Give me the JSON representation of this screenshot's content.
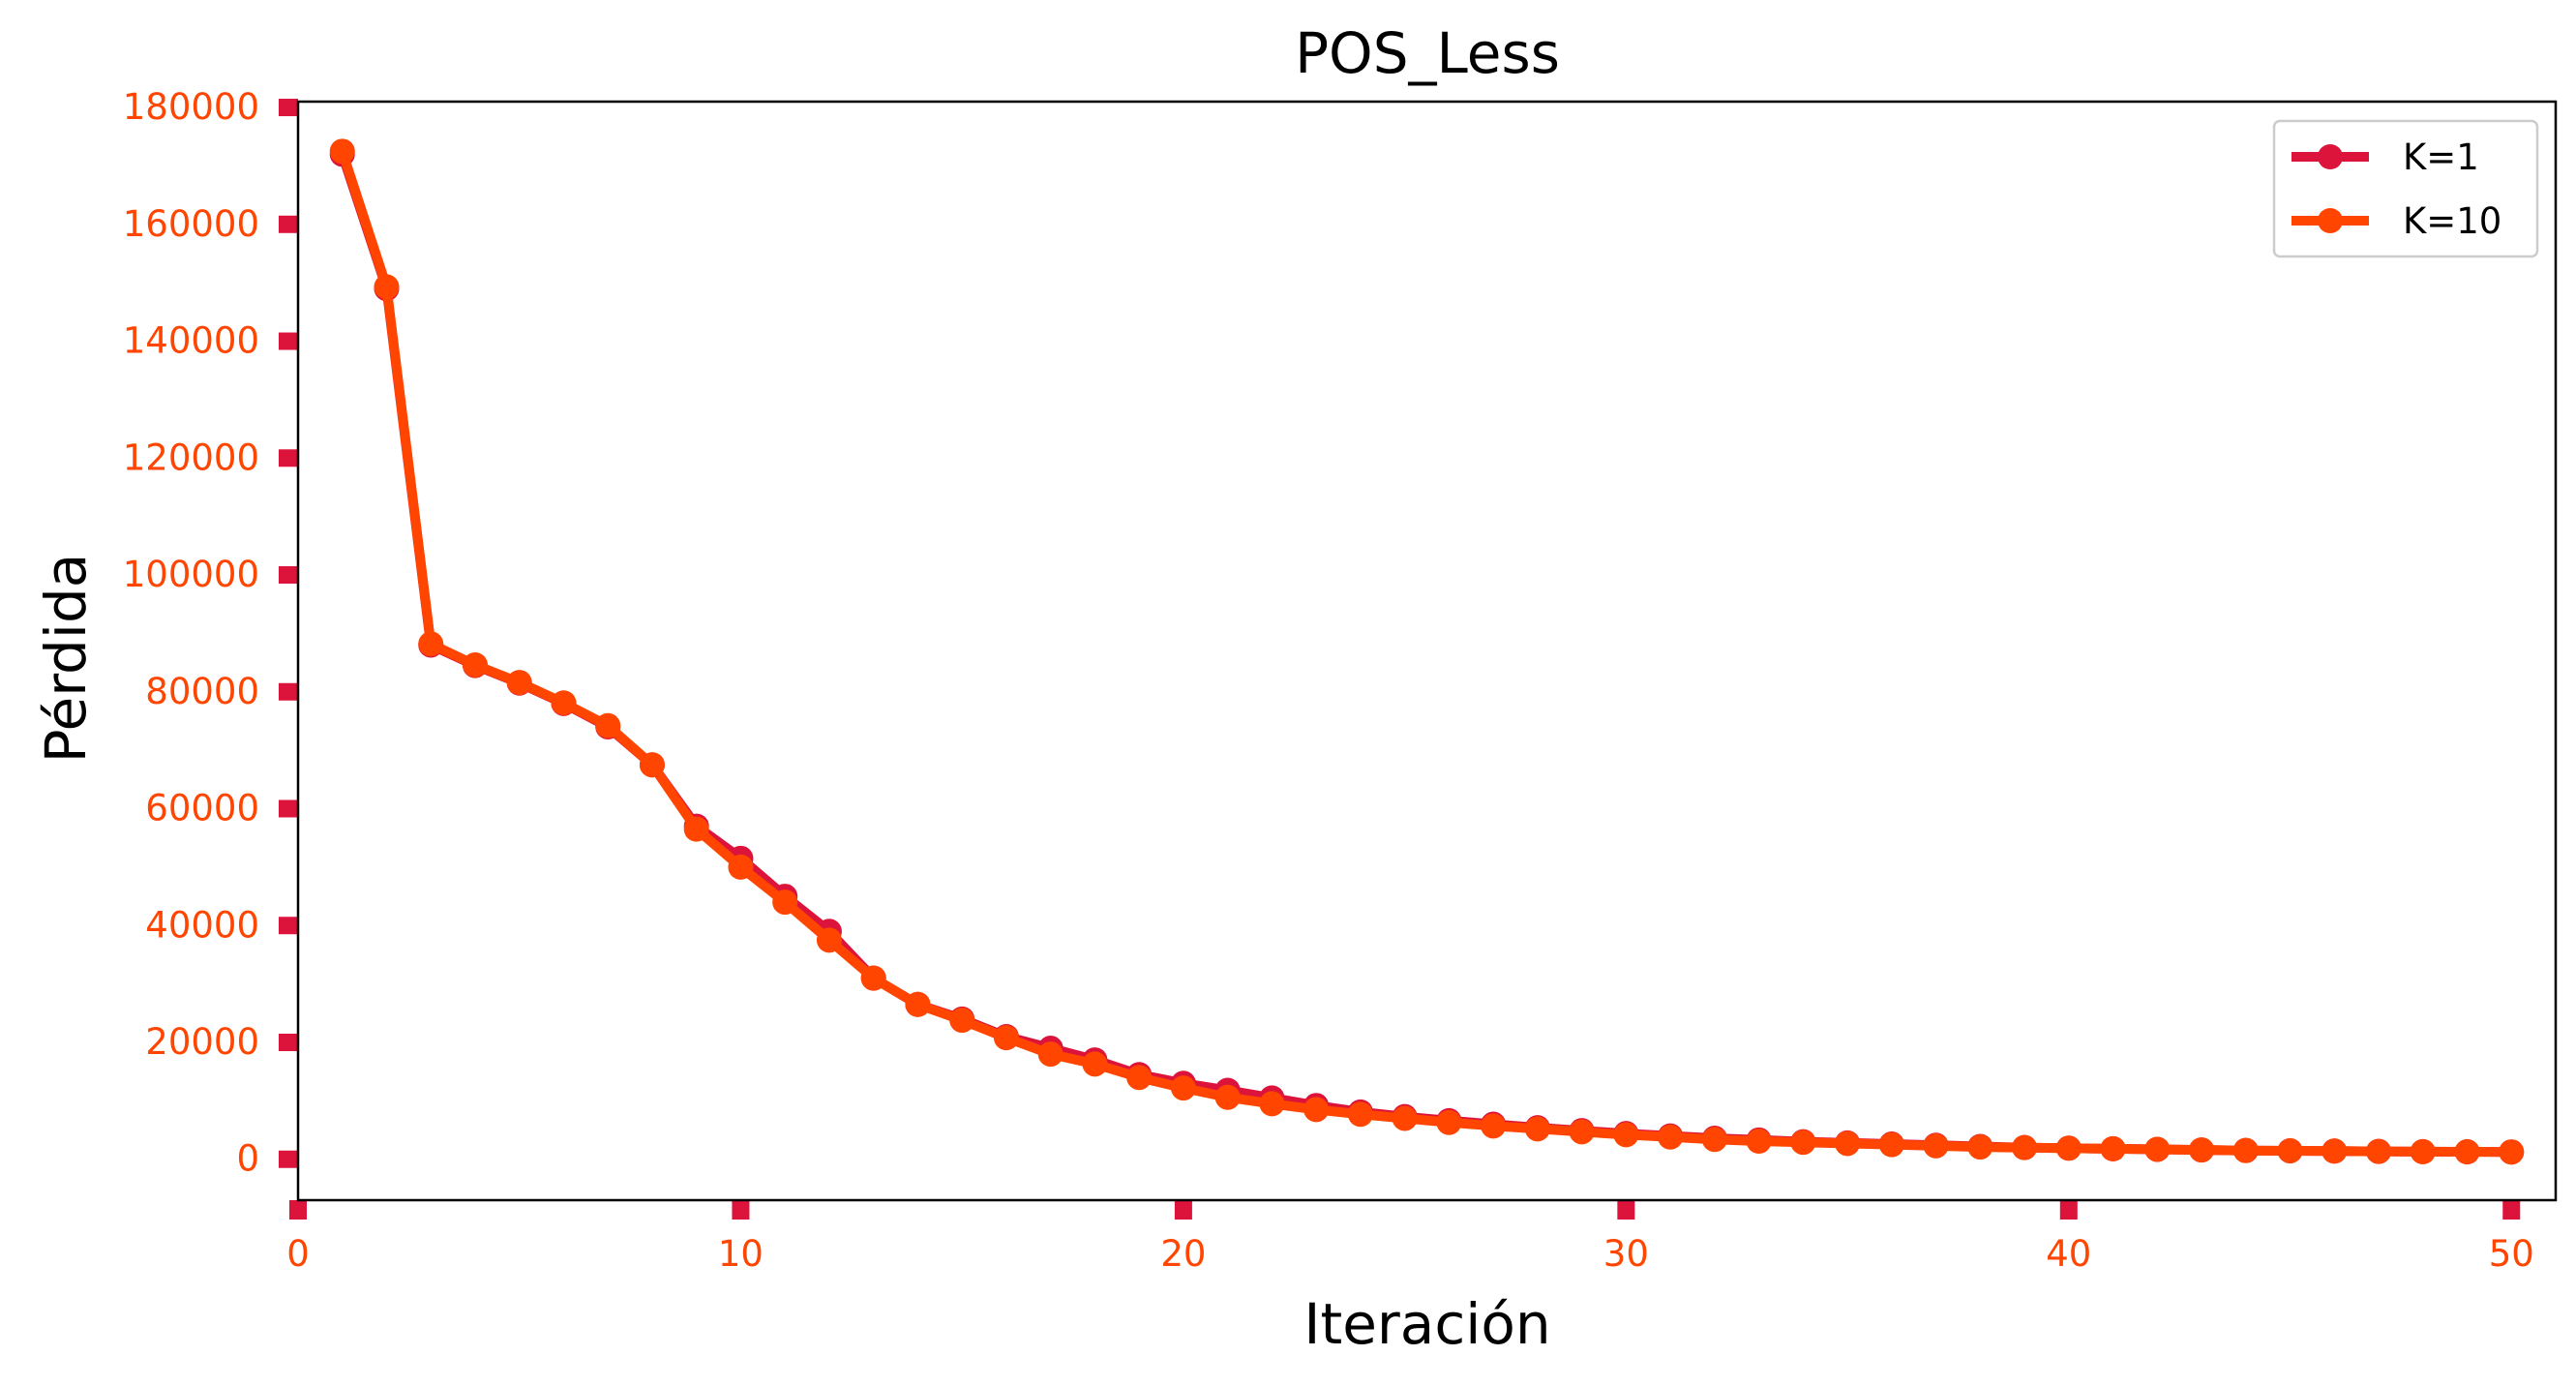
{
  "chart_data": {
    "type": "line",
    "title": "POS_Less",
    "xlabel": "Iteración",
    "ylabel": "Pérdida",
    "xlim": [
      0,
      51
    ],
    "ylim": [
      -7000,
      181000
    ],
    "xticks": [
      0,
      10,
      20,
      30,
      40,
      50
    ],
    "yticks": [
      0,
      20000,
      40000,
      60000,
      80000,
      100000,
      120000,
      140000,
      160000,
      180000
    ],
    "grid": false,
    "legend_position": "top-right",
    "colors": {
      "tick_marks": "#dc143c",
      "tick_labels": "#ff4500",
      "axes": "#000000"
    },
    "x": [
      1,
      2,
      3,
      4,
      5,
      6,
      7,
      8,
      9,
      10,
      11,
      12,
      13,
      14,
      15,
      16,
      17,
      18,
      19,
      20,
      21,
      22,
      23,
      24,
      25,
      26,
      27,
      28,
      29,
      30,
      31,
      32,
      33,
      34,
      35,
      36,
      37,
      38,
      39,
      40,
      41,
      42,
      43,
      44,
      45,
      46,
      47,
      48,
      49,
      50
    ],
    "series": [
      {
        "name": "K=1",
        "color": "#dc143c",
        "values": [
          172000,
          149000,
          88000,
          84500,
          81500,
          78000,
          74000,
          67500,
          57000,
          51500,
          45000,
          39000,
          31000,
          26500,
          24000,
          21000,
          19000,
          17000,
          14500,
          13000,
          11800,
          10500,
          9200,
          8100,
          7300,
          6600,
          6000,
          5400,
          4900,
          4400,
          4000,
          3600,
          3300,
          3000,
          2800,
          2600,
          2400,
          2200,
          2000,
          1900,
          1800,
          1700,
          1600,
          1500,
          1450,
          1400,
          1350,
          1300,
          1280,
          1250
        ]
      },
      {
        "name": "K=10",
        "color": "#ff4500",
        "values": [
          172500,
          149300,
          88200,
          84600,
          81600,
          78100,
          74200,
          67500,
          56500,
          50000,
          44000,
          37500,
          31000,
          26500,
          23800,
          20800,
          18000,
          16300,
          14000,
          12200,
          10600,
          9500,
          8500,
          7700,
          7000,
          6300,
          5700,
          5200,
          4700,
          4200,
          3800,
          3400,
          3100,
          2900,
          2700,
          2500,
          2300,
          2100,
          2000,
          1900,
          1800,
          1700,
          1600,
          1500,
          1450,
          1400,
          1350,
          1300,
          1280,
          1250
        ]
      }
    ]
  }
}
